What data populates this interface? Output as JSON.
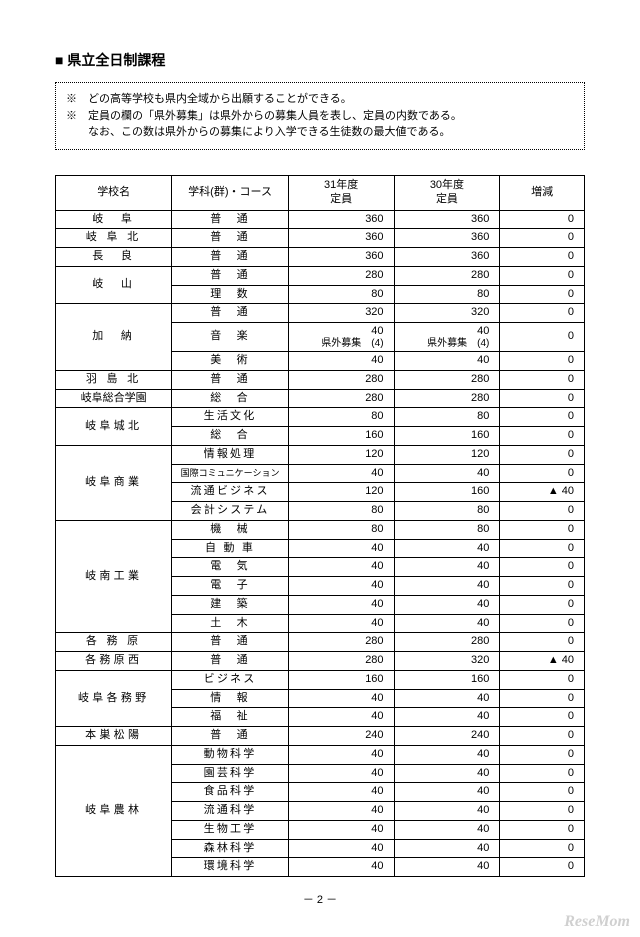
{
  "heading": "■ 県立全日制課程",
  "notes": [
    "※　どの高等学校も県内全域から出願することができる。",
    "※　定員の欄の「県外募集」は県外からの募集人員を表し、定員の内数である。",
    "　　なお、この数は県外からの募集により入学できる生徒数の最大値である。"
  ],
  "columns": {
    "school": "学校名",
    "dept": "学科(群)・コース",
    "y31_a": "31年度",
    "y31_b": "定員",
    "y30_a": "30年度",
    "y30_b": "定員",
    "diff": "増減"
  },
  "page_number": "－ 2 －",
  "watermark": "ReseMom",
  "groups": [
    {
      "school": "岐　阜",
      "rows": [
        {
          "dept": "普　通",
          "y31": "360",
          "y30": "360",
          "diff": "0"
        }
      ]
    },
    {
      "school": "岐 阜 北",
      "rows": [
        {
          "dept": "普　通",
          "y31": "360",
          "y30": "360",
          "diff": "0"
        }
      ]
    },
    {
      "school": "長　良",
      "rows": [
        {
          "dept": "普　通",
          "y31": "360",
          "y30": "360",
          "diff": "0"
        }
      ]
    },
    {
      "school": "岐　山",
      "rows": [
        {
          "dept": "普　通",
          "y31": "280",
          "y30": "280",
          "diff": "0"
        },
        {
          "dept": "理　数",
          "y31": "80",
          "y30": "80",
          "diff": "0"
        }
      ]
    },
    {
      "school": "加　納",
      "rows": [
        {
          "dept": "普　通",
          "y31": "320",
          "y30": "320",
          "diff": "0"
        },
        {
          "dept": "音　楽",
          "y31": "40",
          "y31sub": "県外募集　(4)",
          "y30": "40",
          "y30sub": "県外募集　(4)",
          "diff": "0"
        },
        {
          "dept": "美　術",
          "y31": "40",
          "y30": "40",
          "diff": "0"
        }
      ]
    },
    {
      "school": "羽 島 北",
      "rows": [
        {
          "dept": "普　通",
          "y31": "280",
          "y30": "280",
          "diff": "0"
        }
      ]
    },
    {
      "school": "岐阜総合学園",
      "tight": true,
      "rows": [
        {
          "dept": "総　合",
          "y31": "280",
          "y30": "280",
          "diff": "0"
        }
      ]
    },
    {
      "school": "岐阜城北",
      "rows": [
        {
          "dept": "生活文化",
          "y31": "80",
          "y30": "80",
          "diff": "0"
        },
        {
          "dept": "総　合",
          "y31": "160",
          "y30": "160",
          "diff": "0"
        }
      ]
    },
    {
      "school": "岐阜商業",
      "rows": [
        {
          "dept": "情報処理",
          "y31": "120",
          "y30": "120",
          "diff": "0"
        },
        {
          "dept": "国際コミュニケーション",
          "tight": true,
          "y31": "40",
          "y30": "40",
          "diff": "0"
        },
        {
          "dept": "流通ビジネス",
          "y31": "120",
          "y30": "160",
          "diff": "▲ 40"
        },
        {
          "dept": "会計システム",
          "y31": "80",
          "y30": "80",
          "diff": "0"
        }
      ]
    },
    {
      "school": "岐南工業",
      "rows": [
        {
          "dept": "機　械",
          "y31": "80",
          "y30": "80",
          "diff": "0"
        },
        {
          "dept": "自 動 車",
          "y31": "40",
          "y30": "40",
          "diff": "0"
        },
        {
          "dept": "電　気",
          "y31": "40",
          "y30": "40",
          "diff": "0"
        },
        {
          "dept": "電　子",
          "y31": "40",
          "y30": "40",
          "diff": "0"
        },
        {
          "dept": "建　築",
          "y31": "40",
          "y30": "40",
          "diff": "0"
        },
        {
          "dept": "土　木",
          "y31": "40",
          "y30": "40",
          "diff": "0"
        }
      ]
    },
    {
      "school": "各 務 原",
      "rows": [
        {
          "dept": "普　通",
          "y31": "280",
          "y30": "280",
          "diff": "0"
        }
      ]
    },
    {
      "school": "各務原西",
      "rows": [
        {
          "dept": "普　通",
          "y31": "280",
          "y30": "320",
          "diff": "▲ 40"
        }
      ]
    },
    {
      "school": "岐阜各務野",
      "rows": [
        {
          "dept": "ビジネス",
          "y31": "160",
          "y30": "160",
          "diff": "0"
        },
        {
          "dept": "情　報",
          "y31": "40",
          "y30": "40",
          "diff": "0"
        },
        {
          "dept": "福　祉",
          "y31": "40",
          "y30": "40",
          "diff": "0"
        }
      ]
    },
    {
      "school": "本巣松陽",
      "rows": [
        {
          "dept": "普　通",
          "y31": "240",
          "y30": "240",
          "diff": "0"
        }
      ]
    },
    {
      "school": "岐阜農林",
      "rows": [
        {
          "dept": "動物科学",
          "y31": "40",
          "y30": "40",
          "diff": "0"
        },
        {
          "dept": "園芸科学",
          "y31": "40",
          "y30": "40",
          "diff": "0"
        },
        {
          "dept": "食品科学",
          "y31": "40",
          "y30": "40",
          "diff": "0"
        },
        {
          "dept": "流通科学",
          "y31": "40",
          "y30": "40",
          "diff": "0"
        },
        {
          "dept": "生物工学",
          "y31": "40",
          "y30": "40",
          "diff": "0"
        },
        {
          "dept": "森林科学",
          "y31": "40",
          "y30": "40",
          "diff": "0"
        },
        {
          "dept": "環境科学",
          "y31": "40",
          "y30": "40",
          "diff": "0"
        }
      ]
    }
  ]
}
